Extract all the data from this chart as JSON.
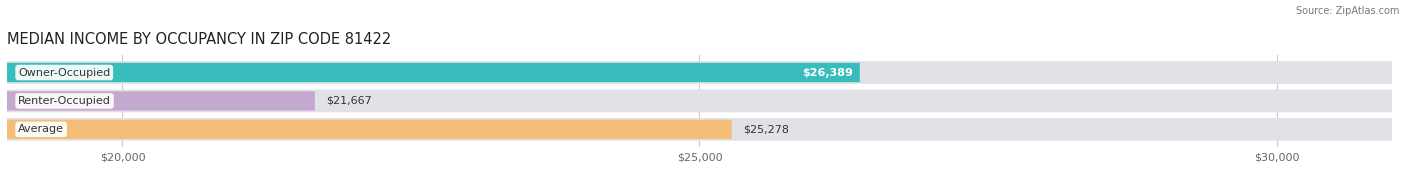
{
  "title": "MEDIAN INCOME BY OCCUPANCY IN ZIP CODE 81422",
  "source": "Source: ZipAtlas.com",
  "categories": [
    "Owner-Occupied",
    "Renter-Occupied",
    "Average"
  ],
  "values": [
    26389,
    21667,
    25278
  ],
  "bar_colors": [
    "#38BCBC",
    "#C4A8D0",
    "#F5BE78"
  ],
  "bar_bg_color": "#E2E2E6",
  "value_labels": [
    "$26,389",
    "$21,667",
    "$25,278"
  ],
  "value_label_colors": [
    "white",
    "black",
    "black"
  ],
  "xmin": 19000,
  "xmax": 31000,
  "xticks": [
    20000,
    25000,
    30000
  ],
  "xtick_labels": [
    "$20,000",
    "$25,000",
    "$30,000"
  ],
  "title_fontsize": 10.5,
  "label_fontsize": 8,
  "tick_fontsize": 8,
  "figsize": [
    14.06,
    1.96
  ],
  "dpi": 100
}
